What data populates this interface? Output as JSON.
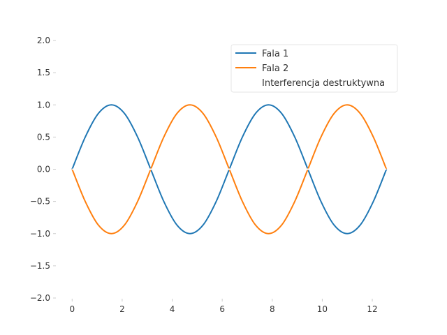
{
  "chart_data": {
    "type": "line",
    "title": "",
    "xlabel": "",
    "ylabel": "",
    "xlim": [
      0,
      12.566
    ],
    "ylim": [
      -2.0,
      2.0
    ],
    "grid": false,
    "x_ticks": [
      0,
      2,
      4,
      6,
      8,
      10,
      12
    ],
    "y_ticks": [
      2.0,
      1.5,
      1.0,
      0.5,
      0.0,
      -0.5,
      -1.0,
      -1.5,
      -2.0
    ],
    "x_tick_labels": [
      "0",
      "2",
      "4",
      "6",
      "8",
      "10",
      "12"
    ],
    "y_tick_labels": [
      "2.0",
      "1.5",
      "1.0",
      "0.5",
      "0.0",
      "−0.5",
      "−1.0",
      "−1.5",
      "−2.0"
    ],
    "legend_position": "top-right",
    "series": [
      {
        "name": "Fala 1",
        "color": "#1f77b4",
        "x": [
          0,
          0.524,
          1.047,
          1.571,
          2.094,
          2.618,
          3.142,
          3.665,
          4.189,
          4.712,
          5.236,
          5.76,
          6.283,
          6.807,
          7.33,
          7.854,
          8.378,
          8.901,
          9.425,
          9.948,
          10.472,
          10.996,
          11.519,
          12.043,
          12.566
        ],
        "y": [
          0,
          0.5,
          0.866,
          1.0,
          0.866,
          0.5,
          0,
          -0.5,
          -0.866,
          -1.0,
          -0.866,
          -0.5,
          0,
          0.5,
          0.866,
          1.0,
          0.866,
          0.5,
          0,
          -0.5,
          -0.866,
          -1.0,
          -0.866,
          -0.5,
          0
        ]
      },
      {
        "name": "Fala 2",
        "color": "#ff7f0e",
        "x": [
          0,
          0.524,
          1.047,
          1.571,
          2.094,
          2.618,
          3.142,
          3.665,
          4.189,
          4.712,
          5.236,
          5.76,
          6.283,
          6.807,
          7.33,
          7.854,
          8.378,
          8.901,
          9.425,
          9.948,
          10.472,
          10.996,
          11.519,
          12.043,
          12.566
        ],
        "y": [
          0,
          -0.5,
          -0.866,
          -1.0,
          -0.866,
          -0.5,
          0,
          0.5,
          0.866,
          1.0,
          0.866,
          0.5,
          0,
          -0.5,
          -0.866,
          -1.0,
          -0.866,
          -0.5,
          0,
          0.5,
          0.866,
          1.0,
          0.866,
          0.5,
          0
        ]
      },
      {
        "name": "Interferencja destruktywna",
        "color": "#ffffff",
        "x": [
          0,
          12.566
        ],
        "y": [
          0,
          0
        ]
      }
    ]
  }
}
